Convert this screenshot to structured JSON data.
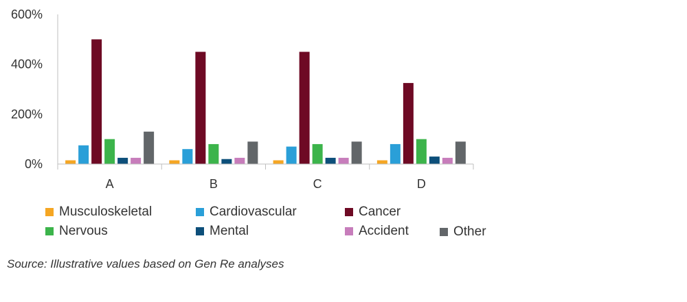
{
  "chart_data": {
    "type": "bar",
    "categories": [
      "A",
      "B",
      "C",
      "D"
    ],
    "series": [
      {
        "name": "Musculoskeletal",
        "color": "#F5A623",
        "values": [
          15,
          15,
          15,
          15
        ]
      },
      {
        "name": "Cardiovascular",
        "color": "#2A9FD8",
        "values": [
          75,
          60,
          70,
          80
        ]
      },
      {
        "name": "Cancer",
        "color": "#6E0A24",
        "values": [
          500,
          450,
          450,
          325
        ]
      },
      {
        "name": "Nervous",
        "color": "#3CB44B",
        "values": [
          100,
          80,
          80,
          100
        ]
      },
      {
        "name": "Mental",
        "color": "#0D4F7A",
        "values": [
          25,
          20,
          25,
          30
        ]
      },
      {
        "name": "Accident",
        "color": "#C77DBB",
        "values": [
          25,
          25,
          25,
          25
        ]
      },
      {
        "name": "Other",
        "color": "#626669",
        "values": [
          130,
          90,
          90,
          90
        ]
      }
    ],
    "yticks": [
      "0%",
      "200%",
      "400%",
      "600%"
    ],
    "ylim": [
      0,
      600
    ],
    "ytick_values": [
      0,
      200,
      400,
      600
    ],
    "grid": false,
    "legend_position": "bottom"
  },
  "source": "Source: Illustrative values based on Gen Re analyses"
}
